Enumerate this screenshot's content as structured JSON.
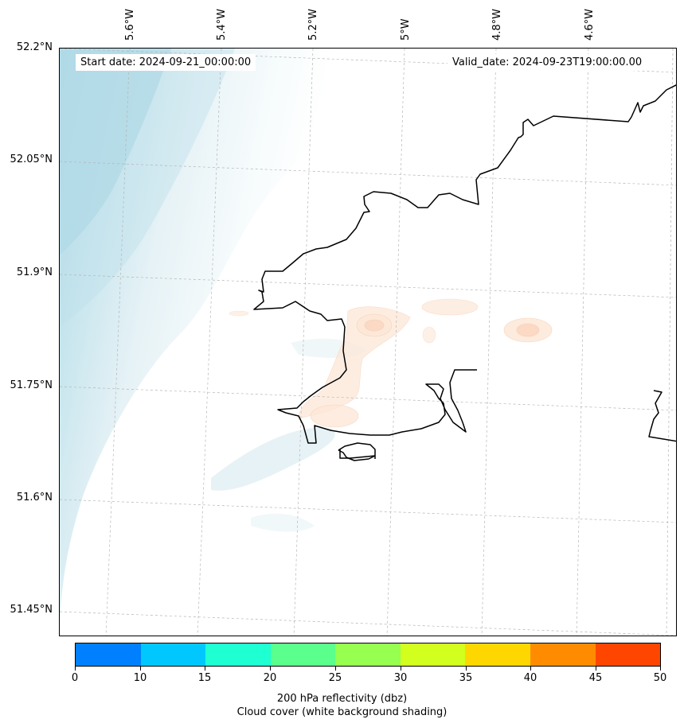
{
  "map": {
    "lon_labels": [
      "5.6°W",
      "5.4°W",
      "5.2°W",
      "5°W",
      "4.8°W",
      "4.6°W"
    ],
    "lat_labels": [
      "52.2°N",
      "52.05°N",
      "51.9°N",
      "51.75°N",
      "51.6°N",
      "51.45°N"
    ],
    "start_date": "Start date: 2024-09-21_00:00:00",
    "valid_date": "Valid_date: 2024-09-23T19:00:00.00"
  },
  "colorbar": {
    "ticks": [
      "0",
      "10",
      "15",
      "20",
      "25",
      "30",
      "35",
      "40",
      "45",
      "50"
    ],
    "colors": [
      "#0080ff",
      "#00c8ff",
      "#1effd2",
      "#5aff8c",
      "#96ff50",
      "#d2ff1e",
      "#ffd700",
      "#ff8c00",
      "#ff4600"
    ],
    "label_line1": "200 hPa reflectivity (dbz)",
    "label_line2": "Cloud cover (white background shading)"
  }
}
